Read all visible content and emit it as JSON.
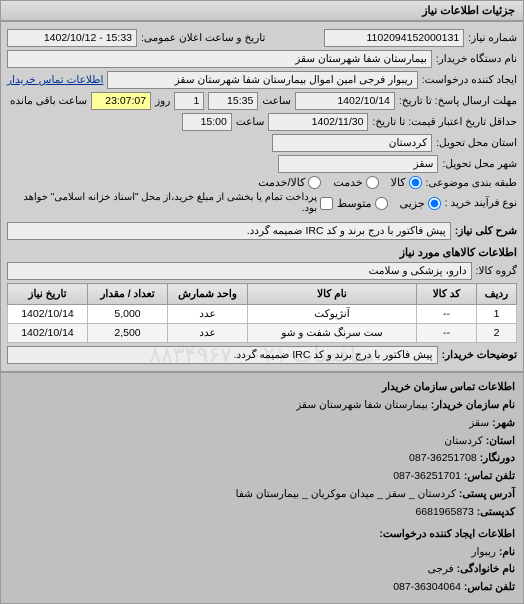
{
  "panel_title": "جزئیات اطلاعات نیاز",
  "fields": {
    "need_no_label": "شماره نیاز:",
    "need_no": "1102094152000131",
    "announce_label": "تاریخ و ساعت اعلان عمومی:",
    "announce": "15:33 - 1402/10/12",
    "buyer_name_label": "نام دستگاه خریدار:",
    "buyer_name": "بیمارستان شفا شهرستان سقز",
    "requester_label": "ایجاد کننده درخواست:",
    "requester": "ریبوار فرجی امین اموال بیمارستان شفا شهرستان سقز",
    "contact_link": "اطلاعات تماس خریدار",
    "deadline_label": "مهلت ارسال پاسخ: تا تاریخ:",
    "deadline_date": "1402/10/14",
    "time_label": "ساعت",
    "deadline_time": "15:35",
    "day_label": "روز",
    "days_left": "1",
    "remaining": "23:07:07",
    "remaining_label": "ساعت باقی مانده",
    "validity_label": "حداقل تاریخ اعتبار قیمت: تا تاریخ:",
    "validity_date": "1402/11/30",
    "validity_time": "15:00",
    "province_label": "استان محل تحویل:",
    "province": "کردستان",
    "city_label": "شهر محل تحویل:",
    "city": "سقز",
    "subject_class_label": "طبقه بندی موضوعی:",
    "radio_goods": "کالا",
    "radio_service": "خدمت",
    "radio_goods_service": "کالا/خدمت",
    "process_label": "نوع فرآیند خرید :",
    "radio_minor": "جزیی",
    "radio_medium": "متوسط",
    "process_note": "پرداخت تمام یا بخشی از مبلغ خرید،از محل \"اسناد خزانه اسلامی\" خواهد بود.",
    "summary_label": "شرح کلی نیاز:",
    "summary": "پیش فاکتور با درج برند و کد IRC ضمیمه گردد.",
    "items_header": "اطلاعات کالاهای مورد نیاز",
    "group_label": "گروه کالا:",
    "group": "دارو، پزشکی و سلامت",
    "buyer_notes_label": "توضیحات خریدار:",
    "buyer_notes": "پیش فاکتور با درج برند و کد IRC ضمیمه گردد."
  },
  "table": {
    "columns": [
      "ردیف",
      "کد کالا",
      "نام کالا",
      "واحد شمارش",
      "تعداد / مقدار",
      "تاریخ نیاز"
    ],
    "rows": [
      [
        "1",
        "--",
        "آنژیوکت",
        "عدد",
        "5,000",
        "1402/10/14"
      ],
      [
        "2",
        "--",
        "ست سرنگ شفت و شو",
        "عدد",
        "2,500",
        "1402/10/14"
      ]
    ],
    "col_widths": [
      "40px",
      "60px",
      "auto",
      "80px",
      "80px",
      "80px"
    ]
  },
  "footer": {
    "title1": "اطلاعات تماس سازمان خریدار",
    "org_label": "نام سازمان خریدار:",
    "org": "بیمارستان شفا شهرستان سقز",
    "city_label": "شهر:",
    "city": "سقز",
    "province_label": "استان:",
    "province": "کردستان",
    "fax_label": "دورنگار:",
    "fax": "36251708-087",
    "phone_label": "تلفن تماس:",
    "phone": "36251701-087",
    "postal_label": "آدرس پستی:",
    "postal": "کردستان _ سقز _ میدان موکریان _ بیمارستان شفا",
    "zip_label": "کدپستی:",
    "zip": "6681965873",
    "title2": "اطلاعات ایجاد کننده درخواست:",
    "fname_label": "نام:",
    "fname": "ریبوار",
    "lname_label": "نام خانوادگی:",
    "lname": "فرجی",
    "phone2_label": "تلفن تماس:",
    "phone2": "36304064-087"
  },
  "watermark": "مناقصات ۰۲۱-۸۸۳۴۹۶۷۰"
}
